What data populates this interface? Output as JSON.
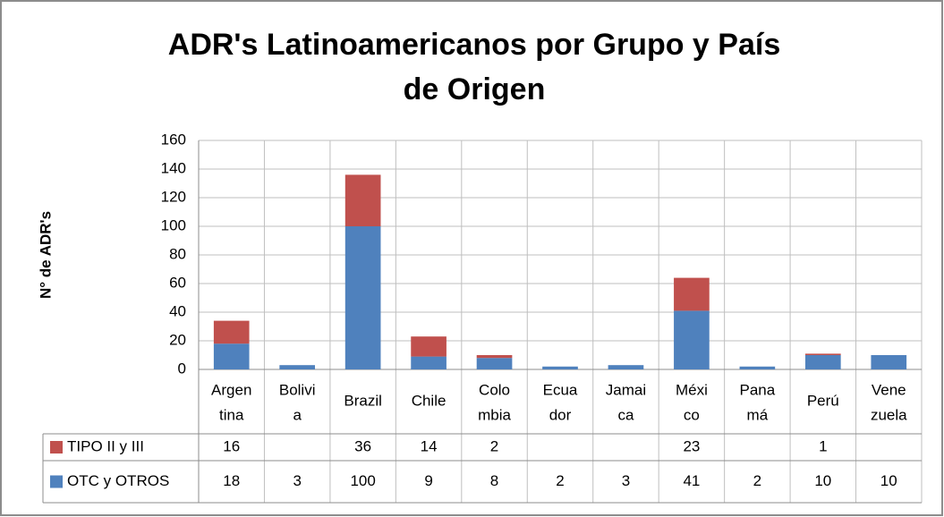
{
  "chart_data": {
    "type": "stacked_bar",
    "title": [
      "ADR's Latinoamericanos por Grupo y País",
      "de Origen"
    ],
    "y_label": "N° de ADR's",
    "categories": [
      [
        "Argen",
        "tina"
      ],
      [
        "Bolivi",
        "a"
      ],
      [
        "Brazil"
      ],
      [
        "Chile"
      ],
      [
        "Colo",
        "mbia"
      ],
      [
        "Ecua",
        "dor"
      ],
      [
        "Jamai",
        "ca"
      ],
      [
        "Méxi",
        "co"
      ],
      [
        "Pana",
        "má"
      ],
      [
        "Perú"
      ],
      [
        "Vene",
        "zuela"
      ]
    ],
    "series": [
      {
        "name": "TIPO II y III",
        "color": "#c0504d",
        "values": [
          16,
          null,
          36,
          14,
          2,
          null,
          null,
          23,
          null,
          1,
          null
        ]
      },
      {
        "name": "OTC y OTROS",
        "color": "#4f81bd",
        "values": [
          18,
          3,
          100,
          9,
          8,
          2,
          3,
          41,
          2,
          10,
          10
        ]
      }
    ],
    "ylim": [
      0,
      160
    ],
    "yticks": [
      0,
      20,
      40,
      60,
      80,
      100,
      120,
      140,
      160
    ],
    "grid": true
  }
}
